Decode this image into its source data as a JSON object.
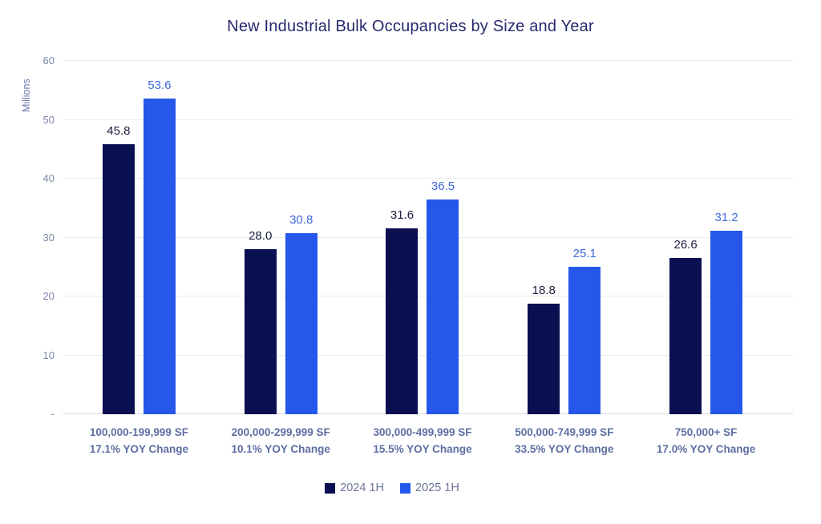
{
  "title": "New Industrial Bulk Occupancies by Size and Year",
  "chart_data": {
    "type": "bar",
    "title": "New Industrial Bulk Occupancies by Size and Year",
    "xlabel": "",
    "ylabel": "Millions",
    "ylim": [
      0,
      60
    ],
    "grid": true,
    "legend_position": "bottom",
    "yticks": [
      {
        "value": 0,
        "label": "-"
      },
      {
        "value": 10,
        "label": "10"
      },
      {
        "value": 20,
        "label": "20"
      },
      {
        "value": 30,
        "label": "30"
      },
      {
        "value": 40,
        "label": "40"
      },
      {
        "value": 50,
        "label": "50"
      },
      {
        "value": 60,
        "label": "60"
      }
    ],
    "categories": [
      {
        "size_range": "100,000-199,999 SF",
        "yoy_change": "17.1% YOY Change"
      },
      {
        "size_range": "200,000-299,999 SF",
        "yoy_change": "10.1% YOY Change"
      },
      {
        "size_range": "300,000-499,999 SF",
        "yoy_change": "15.5% YOY Change"
      },
      {
        "size_range": "500,000-749,999 SF",
        "yoy_change": "33.5% YOY Change"
      },
      {
        "size_range": "750,000+ SF",
        "yoy_change": "17.0% YOY Change"
      }
    ],
    "series": [
      {
        "name": "2024 1H",
        "color": "#0a0f52",
        "label_color": "#1b1d40",
        "values": [
          45.8,
          28.0,
          31.6,
          18.8,
          26.6
        ]
      },
      {
        "name": "2025 1H",
        "color": "#2557eb",
        "label_color": "#3e69d9",
        "values": [
          53.6,
          30.8,
          36.5,
          25.1,
          31.2
        ]
      }
    ]
  },
  "colors": {
    "title": "#26296c",
    "grid": "#e9ebef",
    "axis_text": "#7d87ac",
    "category_text": "#5e6ea2",
    "legend_text": "#6b7695"
  }
}
